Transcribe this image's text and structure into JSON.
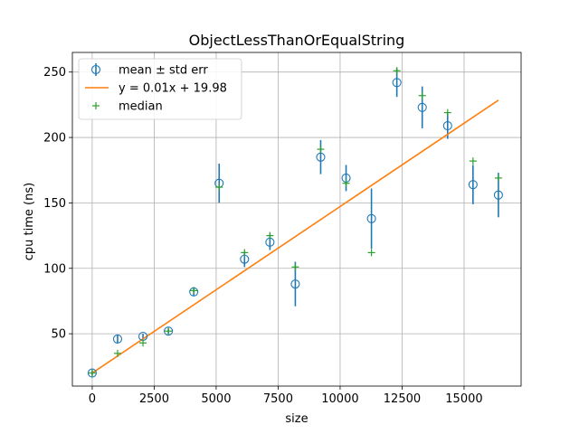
{
  "chart_data": {
    "type": "scatter",
    "title": "ObjectLessThanOrEqualString",
    "xlabel": "size",
    "ylabel": "cpu time (ns)",
    "xlim": [
      -800,
      17300
    ],
    "ylim": [
      10,
      265
    ],
    "xticks": [
      0,
      2500,
      5000,
      7500,
      10000,
      12500,
      15000
    ],
    "yticks": [
      50,
      100,
      150,
      200,
      250
    ],
    "grid": true,
    "legend_position": "top-left",
    "colors": {
      "mean": "#1f77b4",
      "fit": "#ff7f0e",
      "median": "#2ca02c"
    },
    "series": [
      {
        "name": "mean ± std err",
        "kind": "errorbar",
        "x": [
          0,
          1024,
          2048,
          3072,
          4096,
          5120,
          6144,
          7168,
          8192,
          9216,
          10240,
          11264,
          12288,
          13312,
          14336,
          15360,
          16384
        ],
        "y": [
          20,
          46,
          48,
          52,
          82,
          165,
          107,
          120,
          88,
          185,
          169,
          138,
          242,
          223,
          209,
          164,
          156
        ],
        "err": [
          2,
          3,
          2,
          2,
          3,
          15,
          6,
          6,
          17,
          13,
          10,
          23,
          11,
          16,
          10,
          15,
          17
        ]
      },
      {
        "name": "y = 0.01x + 19.98",
        "kind": "line",
        "x": [
          0,
          16384
        ],
        "y": [
          19.98,
          228.5
        ]
      },
      {
        "name": "median",
        "kind": "marker",
        "x": [
          0,
          1024,
          2048,
          3072,
          4096,
          5120,
          6144,
          7168,
          8192,
          9216,
          10240,
          11264,
          12288,
          13312,
          14336,
          15360,
          16384
        ],
        "y": [
          20,
          35,
          43,
          52,
          83,
          162,
          112,
          125,
          101,
          191,
          165,
          112,
          251,
          232,
          219,
          182,
          169
        ]
      }
    ]
  }
}
